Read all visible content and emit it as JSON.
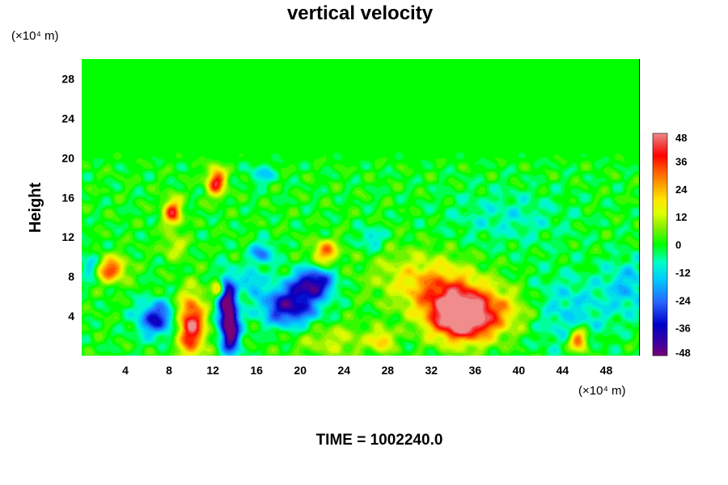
{
  "chart_data": {
    "type": "heatmap",
    "title": "vertical velocity",
    "ylabel": "Height",
    "x_unit_label": "(×10⁴ m)",
    "y_unit_label": "(×10⁴ m)",
    "footer": "TIME = 1002240.0",
    "xlim": [
      0,
      51
    ],
    "ylim": [
      0,
      30
    ],
    "x_ticks": [
      "4",
      "8",
      "12",
      "16",
      "20",
      "24",
      "28",
      "32",
      "36",
      "40",
      "44",
      "48"
    ],
    "y_ticks": [
      "4",
      "8",
      "12",
      "16",
      "20",
      "24",
      "28"
    ],
    "colorbar": {
      "min": -48,
      "max": 48,
      "ticks": [
        "48",
        "36",
        "24",
        "12",
        "0",
        "-12",
        "-24",
        "-36",
        "-48"
      ]
    },
    "features": [
      {
        "x": 10,
        "y": 3.0,
        "value": 46,
        "sx": 0.9,
        "sy": 2.2
      },
      {
        "x": 12.3,
        "y": 17.6,
        "value": 40,
        "sx": 0.6,
        "sy": 1.0
      },
      {
        "x": 8.3,
        "y": 14.5,
        "value": 36,
        "sx": 0.6,
        "sy": 1.0
      },
      {
        "x": 2.6,
        "y": 8.7,
        "value": 34,
        "sx": 1.0,
        "sy": 0.9
      },
      {
        "x": 22.3,
        "y": 10.5,
        "value": 30,
        "sx": 0.8,
        "sy": 0.8
      },
      {
        "x": 12.5,
        "y": 6.8,
        "value": 28,
        "sx": 0.4,
        "sy": 0.6
      },
      {
        "x": 34.8,
        "y": 3.5,
        "value": 44,
        "sx": 2.0,
        "sy": 1.6
      },
      {
        "x": 33.5,
        "y": 6.0,
        "value": 26,
        "sx": 2.3,
        "sy": 1.8
      },
      {
        "x": 37.5,
        "y": 4.5,
        "value": 22,
        "sx": 3.2,
        "sy": 1.8
      },
      {
        "x": 45.5,
        "y": 1.5,
        "value": 36,
        "sx": 0.6,
        "sy": 0.8
      },
      {
        "x": 27.5,
        "y": 1.5,
        "value": 22,
        "sx": 0.7,
        "sy": 0.8
      },
      {
        "x": 13.3,
        "y": 5.5,
        "value": -46,
        "sx": 0.6,
        "sy": 1.8
      },
      {
        "x": 13.6,
        "y": 2.3,
        "value": -46,
        "sx": 0.6,
        "sy": 1.6
      },
      {
        "x": 19,
        "y": 5.0,
        "value": -40,
        "sx": 1.8,
        "sy": 1.4
      },
      {
        "x": 21.2,
        "y": 7.3,
        "value": -40,
        "sx": 1.3,
        "sy": 1.0
      },
      {
        "x": 6.8,
        "y": 3.7,
        "value": -34,
        "sx": 1.2,
        "sy": 1.2
      },
      {
        "x": 16.5,
        "y": 10.3,
        "value": -22,
        "sx": 0.8,
        "sy": 0.8
      },
      {
        "x": 15.5,
        "y": 7.5,
        "value": -18,
        "sx": 0.7,
        "sy": 0.8
      },
      {
        "x": 0.8,
        "y": 9.0,
        "value": -18,
        "sx": 0.6,
        "sy": 1.0
      },
      {
        "x": 44,
        "y": 4.5,
        "value": -14,
        "sx": 3.0,
        "sy": 2.5
      },
      {
        "x": 50,
        "y": 7.0,
        "value": -14,
        "sx": 1.5,
        "sy": 2.0
      },
      {
        "x": 16.5,
        "y": 18.3,
        "value": -14,
        "sx": 0.8,
        "sy": 0.7
      },
      {
        "x": 26.5,
        "y": 11.8,
        "value": -14,
        "sx": 0.8,
        "sy": 0.8
      },
      {
        "x": 30.5,
        "y": 8.0,
        "value": 14,
        "sx": 3.0,
        "sy": 2.0
      },
      {
        "x": 23,
        "y": 1.5,
        "value": 12,
        "sx": 2.5,
        "sy": 1.2
      },
      {
        "x": 8.5,
        "y": 11.0,
        "value": 14,
        "sx": 0.8,
        "sy": 0.8
      },
      {
        "x": 39,
        "y": 14.0,
        "value": -8,
        "sx": 4.0,
        "sy": 2.0
      }
    ]
  }
}
